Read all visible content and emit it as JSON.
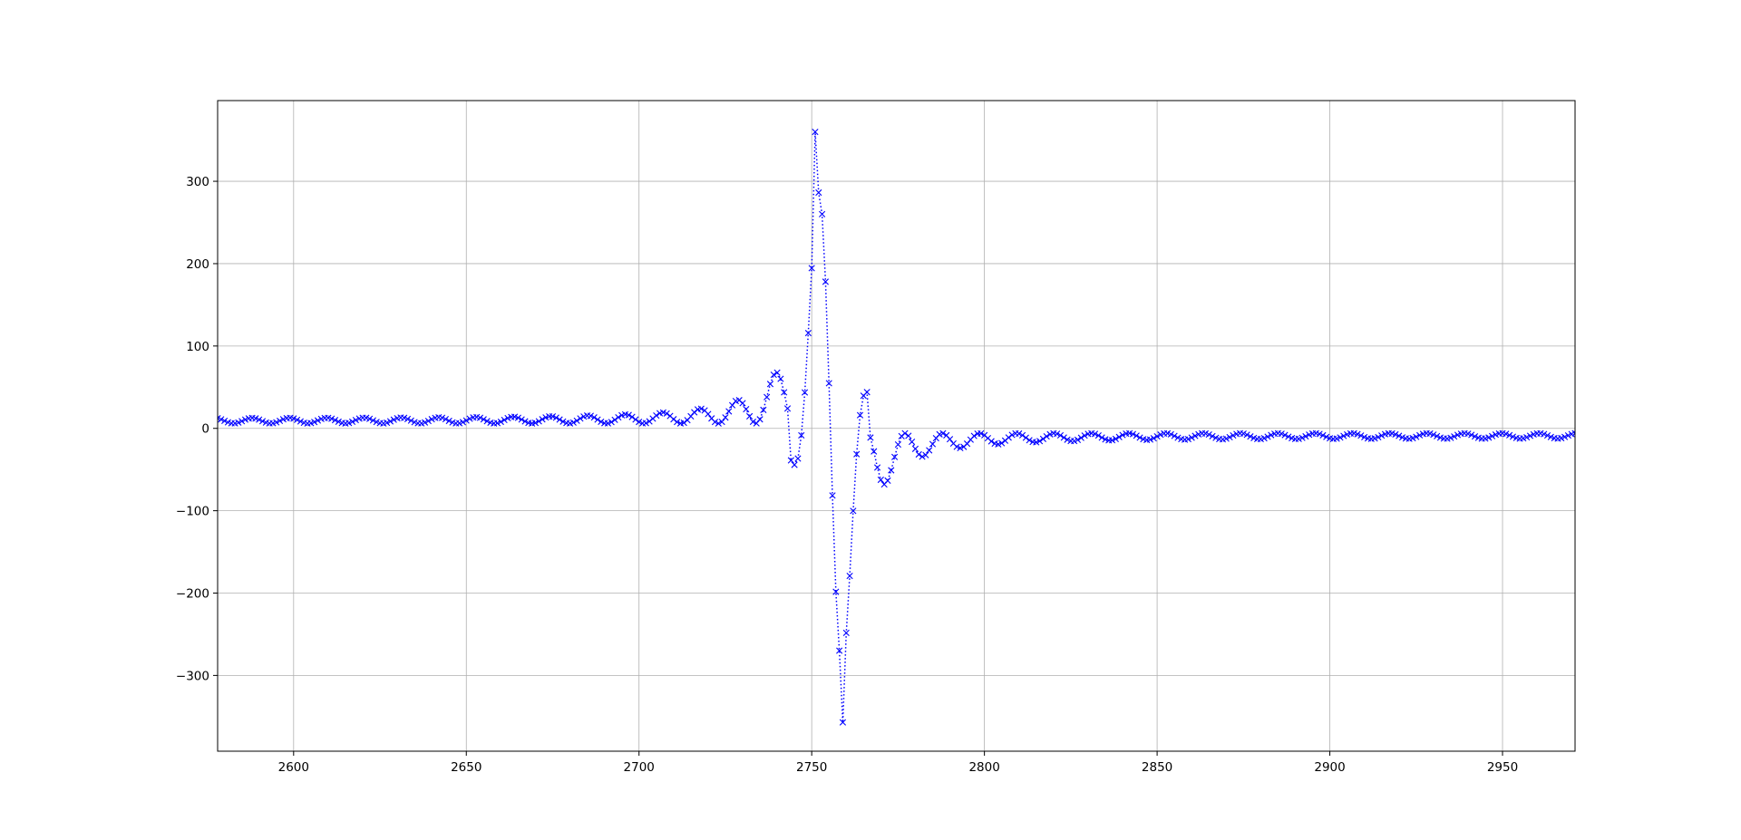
{
  "chart_data": {
    "type": "line",
    "title": "",
    "xlabel": "",
    "ylabel": "",
    "xlim": [
      2578,
      2971
    ],
    "ylim": [
      -392,
      398
    ],
    "xticks": [
      2600,
      2650,
      2700,
      2750,
      2800,
      2850,
      2900,
      2950
    ],
    "yticks": [
      -300,
      -200,
      -100,
      0,
      100,
      200,
      300
    ],
    "xtick_labels": [
      "2600",
      "2650",
      "2700",
      "2750",
      "2800",
      "2850",
      "2900",
      "2950"
    ],
    "ytick_labels": [
      "−300",
      "−200",
      "−100",
      "0",
      "100",
      "200",
      "300"
    ],
    "grid": true,
    "legend": "none",
    "series": [
      {
        "color": "#0000ff",
        "line_style": "dotted",
        "marker": "x",
        "x_start": 2578,
        "x_end": 2971,
        "x_step": 1,
        "waveform": "sinc-like pulse, approx. 10.8-sample ripple period, offset envelope up to ~6 before and down to ~-6 after the pulse",
        "pulse_center": 2755.4,
        "peak": {
          "x": 2751,
          "y": 360
        },
        "trough": {
          "x": 2759,
          "y": -357
        },
        "value_range": [
          -357,
          360
        ]
      }
    ]
  }
}
